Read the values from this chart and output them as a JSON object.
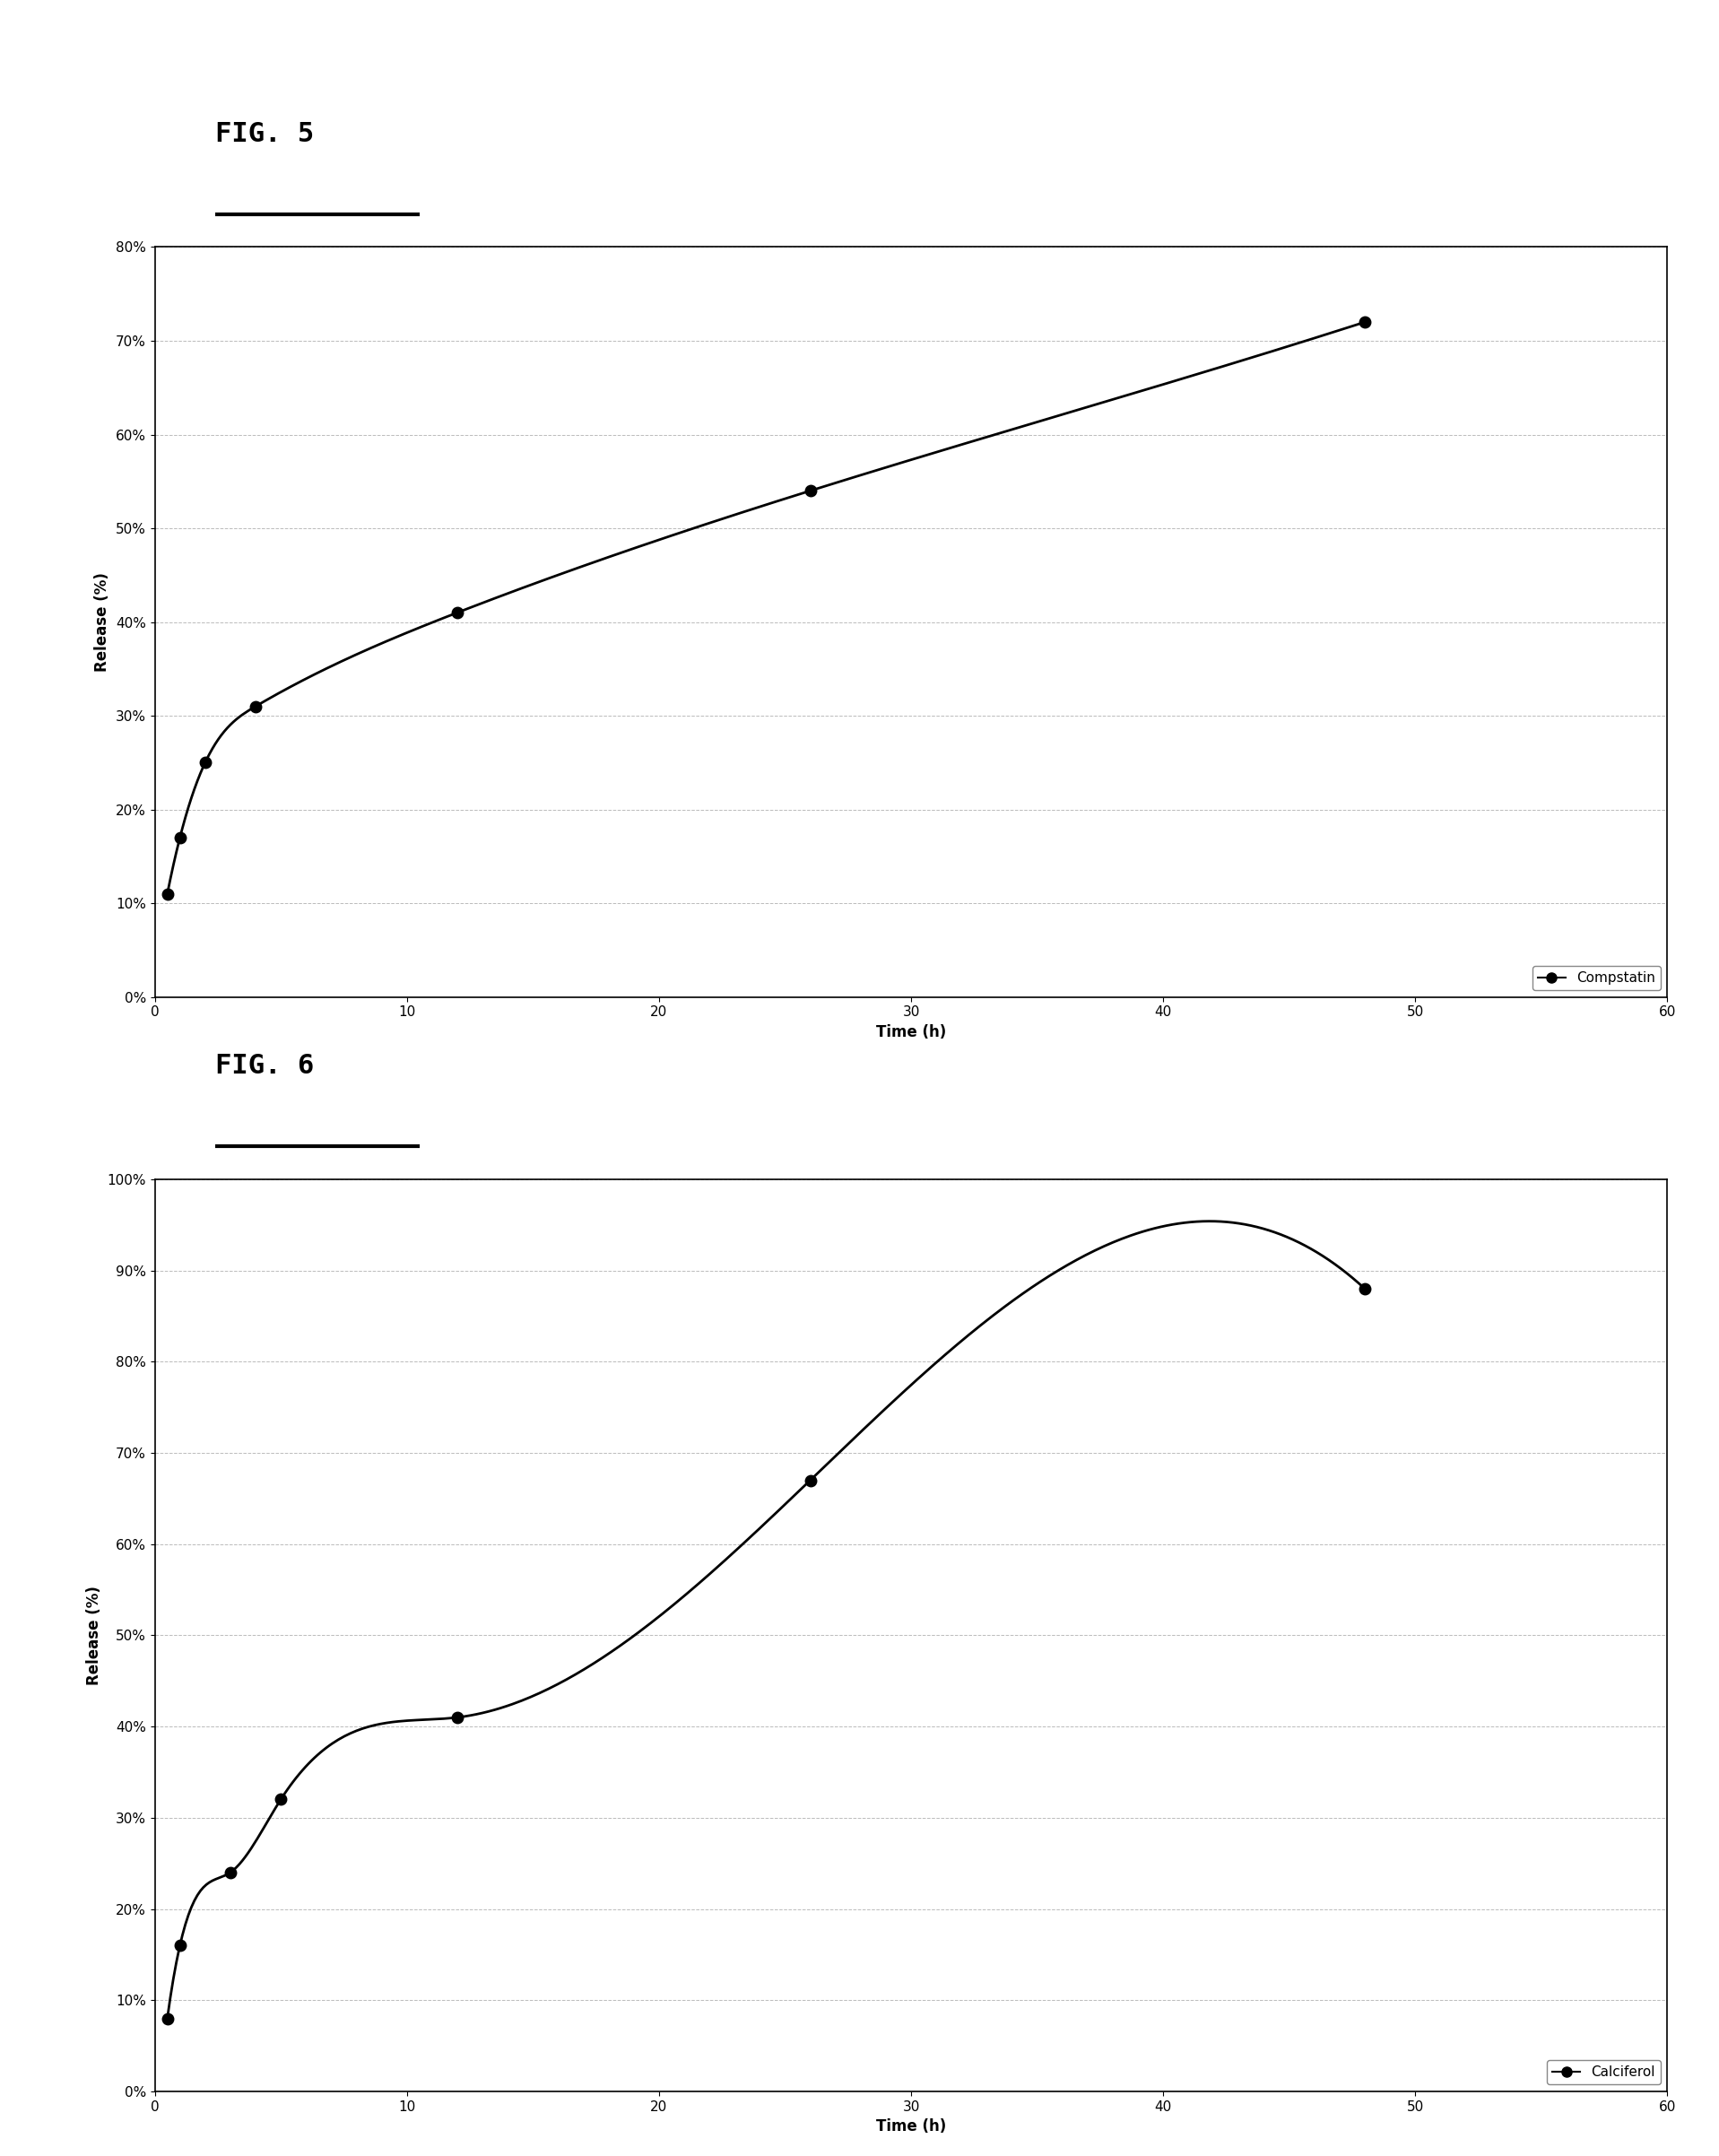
{
  "fig5": {
    "title": "FIG. 5",
    "x": [
      0.5,
      1,
      2,
      4,
      12,
      26,
      48
    ],
    "y": [
      0.11,
      0.17,
      0.25,
      0.31,
      0.41,
      0.54,
      0.72
    ],
    "xlabel": "Time (h)",
    "ylabel": "Release (%)",
    "legend": "Compstatin",
    "xlim": [
      0,
      60
    ],
    "ylim": [
      0,
      0.8
    ],
    "yticks": [
      0.0,
      0.1,
      0.2,
      0.3,
      0.4,
      0.5,
      0.6,
      0.7,
      0.8
    ],
    "xticks": [
      0,
      10,
      20,
      30,
      40,
      50,
      60
    ]
  },
  "fig6": {
    "title": "FIG. 6",
    "x": [
      0.5,
      1,
      3,
      5,
      12,
      26,
      48
    ],
    "y": [
      0.08,
      0.16,
      0.24,
      0.32,
      0.41,
      0.67,
      0.88
    ],
    "xlabel": "Time (h)",
    "ylabel": "Release (%)",
    "legend": "Calciferol",
    "xlim": [
      0,
      60
    ],
    "ylim": [
      0,
      1.0
    ],
    "yticks": [
      0.0,
      0.1,
      0.2,
      0.3,
      0.4,
      0.5,
      0.6,
      0.7,
      0.8,
      0.9,
      1.0
    ],
    "xticks": [
      0,
      10,
      20,
      30,
      40,
      50,
      60
    ]
  },
  "background_color": "#ffffff",
  "plot_bg_color": "#ffffff",
  "line_color": "#000000",
  "marker_color": "#000000",
  "grid_color": "#aaaaaa",
  "fig_label_fontsize": 22,
  "axis_label_fontsize": 12,
  "tick_fontsize": 11,
  "legend_fontsize": 11
}
